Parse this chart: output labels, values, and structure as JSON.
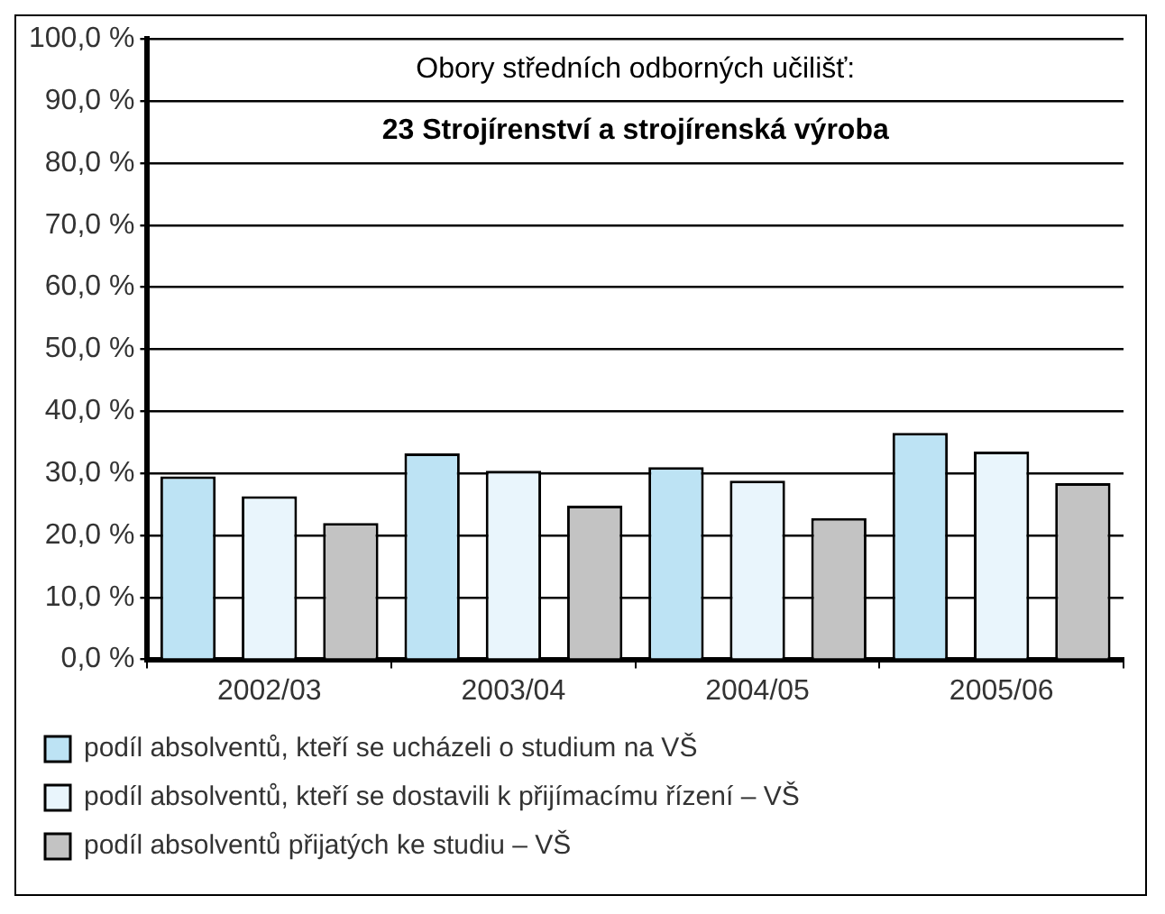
{
  "chart_data": {
    "type": "bar",
    "title": "23 Strojírenství a strojírenská výroba",
    "subtitle": "Obory středních odborných učilišť:",
    "categories": [
      "2002/03",
      "2003/04",
      "2004/05",
      "2005/06"
    ],
    "series": [
      {
        "name": "podíl absolventů, kteří se ucházeli o studium na VŠ",
        "color": "#bde3f4",
        "values": [
          29.5,
          33.2,
          31.0,
          36.5
        ]
      },
      {
        "name": "podíl absolventů, kteří se dostavili k přijímacímu řízení – VŠ",
        "color": "#e9f5fc",
        "values": [
          26.3,
          30.4,
          28.8,
          33.5
        ]
      },
      {
        "name": "podíl absolventů přijatých ke studiu – VŠ",
        "color": "#c3c3c3",
        "values": [
          22.0,
          24.8,
          22.8,
          28.4
        ]
      }
    ],
    "ylim": [
      0,
      100
    ],
    "yticks": [
      {
        "value": 0,
        "label": "0,0 %"
      },
      {
        "value": 10,
        "label": "10,0 %"
      },
      {
        "value": 20,
        "label": "20,0 %"
      },
      {
        "value": 30,
        "label": "30,0 %"
      },
      {
        "value": 40,
        "label": "40,0 %"
      },
      {
        "value": 50,
        "label": "50,0 %"
      },
      {
        "value": 60,
        "label": "60,0 %"
      },
      {
        "value": 70,
        "label": "70,0 %"
      },
      {
        "value": 80,
        "label": "80,0 %"
      },
      {
        "value": 90,
        "label": "90,0 %"
      },
      {
        "value": 100,
        "label": "100,0 %"
      }
    ],
    "grid": "y",
    "legend": "bottom"
  }
}
